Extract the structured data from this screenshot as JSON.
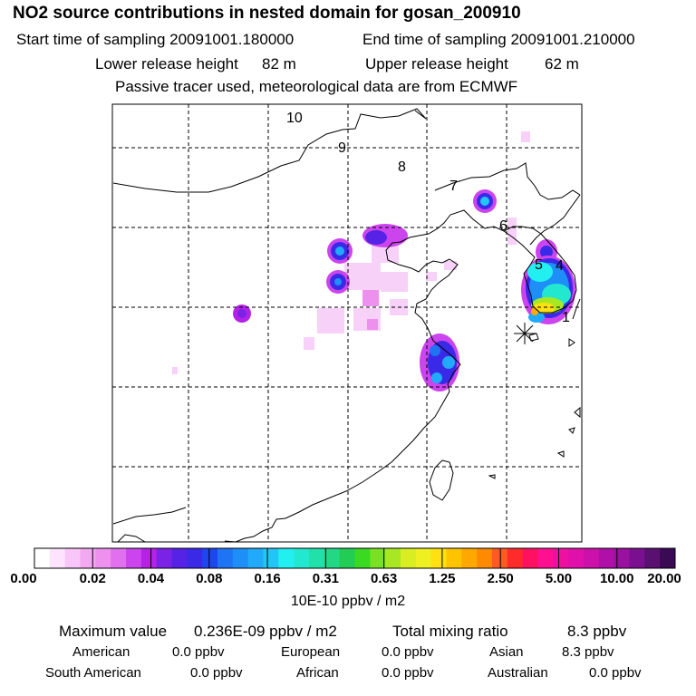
{
  "header": {
    "title": "NO2 source contributions in nested domain for gosan_200910",
    "start_label": "Start time of sampling 20091001.180000",
    "end_label": "End time of sampling 20091001.210000",
    "lower_label": "Lower release height",
    "lower_value": "82 m",
    "upper_label": "Upper release height",
    "upper_value": "62 m",
    "tracer_note": "Passive tracer used, meteorological data are from ECMWF"
  },
  "map": {
    "trajectory_labels": [
      "10",
      "9",
      "8",
      "7",
      "6",
      "5",
      "4",
      "1"
    ],
    "receptor_marker": "gosan station"
  },
  "colorbar": {
    "labels": [
      "0.00",
      "0.02",
      "0.04",
      "0.08",
      "0.16",
      "0.31",
      "0.63",
      "1.25",
      "2.50",
      "5.00",
      "10.00",
      "20.00"
    ],
    "colors": [
      "#ffffff",
      "#fde3fd",
      "#f8c6f8",
      "#f2a9f2",
      "#ee90ee",
      "#e070ee",
      "#cc44ee",
      "#b422e8",
      "#7a22e6",
      "#5522e6",
      "#3a2ae8",
      "#1e46f0",
      "#1f74f4",
      "#1e8ef8",
      "#21aafa",
      "#22c6f6",
      "#22f0f0",
      "#22e8d0",
      "#22e0aa",
      "#22d884",
      "#22cc55",
      "#3ada22",
      "#7ae022",
      "#a8e822",
      "#d8ee22",
      "#eef022",
      "#ffe010",
      "#ffc400",
      "#ffa800",
      "#ff8a00",
      "#ff5a22",
      "#ff2a2a",
      "#ff1060",
      "#ff1090",
      "#f010a0",
      "#e010aa",
      "#cc10aa",
      "#b010a8",
      "#9a10a0",
      "#7a1090",
      "#5a1070",
      "#3a0a55"
    ],
    "unit": "10E-10 ppbv / m2"
  },
  "stats": {
    "max_label": "Maximum value",
    "max_value": "0.236E-09 ppbv / m2",
    "total_label": "Total mixing ratio",
    "total_value": "8.3 ppbv",
    "regions": [
      {
        "name": "American",
        "value": "0.0 ppbv"
      },
      {
        "name": "European",
        "value": "0.0 ppbv"
      },
      {
        "name": "Asian",
        "value": "8.3 ppbv"
      },
      {
        "name": "South American",
        "value": "0.0 ppbv"
      },
      {
        "name": "African",
        "value": "0.0 ppbv"
      },
      {
        "name": "Australian",
        "value": "0.0 ppbv"
      }
    ]
  }
}
